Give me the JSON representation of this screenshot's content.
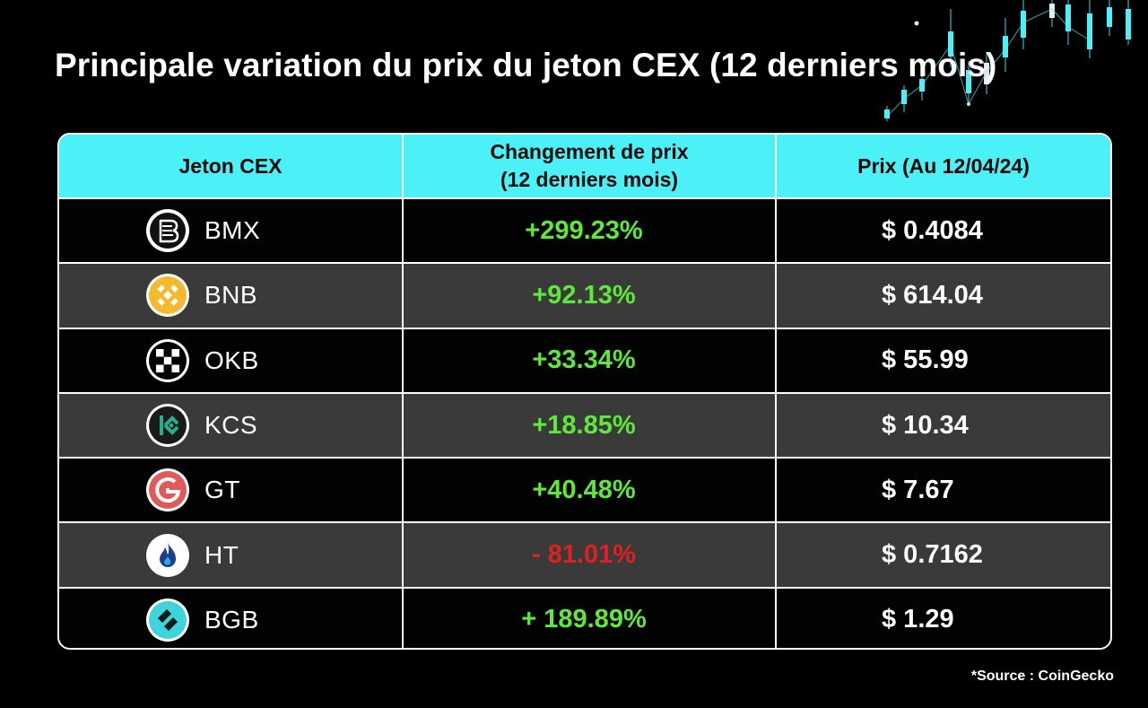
{
  "title": "Principale variation du prix du jeton CEX (12 derniers mois)",
  "colors": {
    "header_bg": "#4cf0f7",
    "positive": "#5ee83a",
    "negative": "#e02020",
    "row_dark": "#020202",
    "row_grey": "#3a3a3a",
    "background": "#000000"
  },
  "chart_data": {
    "type": "table",
    "columns": [
      "Jeton CEX",
      "Changement de prix (12 derniers mois)",
      "Prix (Au 12/04/24)"
    ],
    "rows": [
      {
        "token": "BMX",
        "change": "+299.23%",
        "change_value": 299.23,
        "price": "$ 0.4084",
        "icon": "bmx-logo-icon",
        "trend": "positive"
      },
      {
        "token": "BNB",
        "change": "+92.13%",
        "change_value": 92.13,
        "price": "$ 614.04",
        "icon": "bnb-logo-icon",
        "trend": "positive"
      },
      {
        "token": "OKB",
        "change": "+33.34%",
        "change_value": 33.34,
        "price": "$ 55.99",
        "icon": "okb-logo-icon",
        "trend": "positive"
      },
      {
        "token": "KCS",
        "change": "+18.85%",
        "change_value": 18.85,
        "price": "$ 10.34",
        "icon": "kcs-logo-icon",
        "trend": "positive"
      },
      {
        "token": "GT",
        "change": "+40.48%",
        "change_value": 40.48,
        "price": "$ 7.67",
        "icon": "gt-logo-icon",
        "trend": "positive"
      },
      {
        "token": "HT",
        "change": "- 81.01%",
        "change_value": -81.01,
        "price": "$ 0.7162",
        "icon": "ht-logo-icon",
        "trend": "negative"
      },
      {
        "token": "BGB",
        "change": "+ 189.89%",
        "change_value": 189.89,
        "price": "$ 1.29",
        "icon": "bgb-logo-icon",
        "trend": "positive"
      }
    ]
  },
  "header": {
    "col1": "Jeton CEX",
    "col2_line1": "Changement de prix",
    "col2_line2": "(12 derniers mois)",
    "col3": "Prix (Au 12/04/24)"
  },
  "source": "*Source : CoinGecko"
}
